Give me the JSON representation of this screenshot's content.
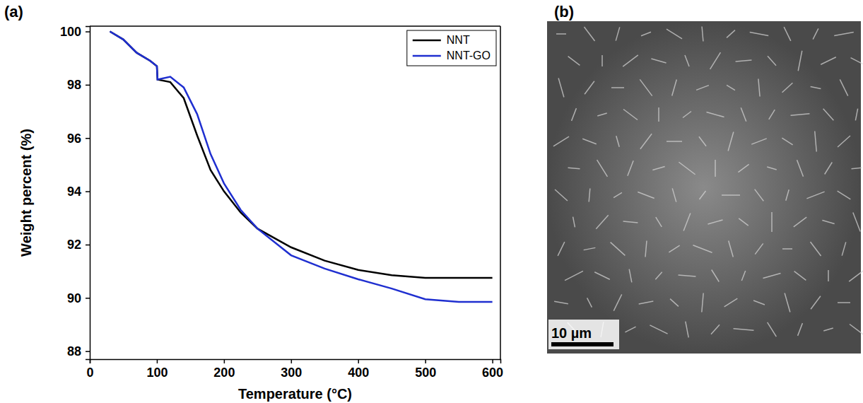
{
  "chart_data": {
    "type": "line",
    "panel_label": "(a)",
    "x_label": "Temperature (°C)",
    "y_label": "Weight percent (%)",
    "x": [
      30,
      50,
      70,
      90,
      100,
      101,
      120,
      140,
      160,
      180,
      200,
      225,
      250,
      300,
      350,
      400,
      450,
      500,
      550,
      600
    ],
    "series": [
      {
        "name": "NNT",
        "color": "#000000",
        "values": [
          100,
          99.7,
          99.2,
          98.9,
          98.7,
          98.2,
          98.1,
          97.5,
          96.1,
          94.8,
          94.0,
          93.2,
          92.6,
          91.9,
          91.4,
          91.05,
          90.85,
          90.75,
          90.75,
          90.75
        ]
      },
      {
        "name": "NNT-GO",
        "color": "#1f2fd0",
        "values": [
          100,
          99.7,
          99.2,
          98.9,
          98.7,
          98.2,
          98.3,
          97.9,
          96.9,
          95.4,
          94.3,
          93.3,
          92.6,
          91.6,
          91.1,
          90.7,
          90.35,
          89.95,
          89.85,
          89.85
        ]
      }
    ],
    "xlim": [
      0,
      612
    ],
    "xticks": [
      0,
      100,
      200,
      300,
      400,
      500,
      600
    ],
    "ylim": [
      87.7,
      100.2
    ],
    "yticks": [
      88,
      90,
      92,
      94,
      96,
      98,
      100
    ],
    "legend": "upper right",
    "grid": false
  },
  "image_panel": {
    "panel_label": "(b)",
    "scale_bar": "10 µm"
  }
}
